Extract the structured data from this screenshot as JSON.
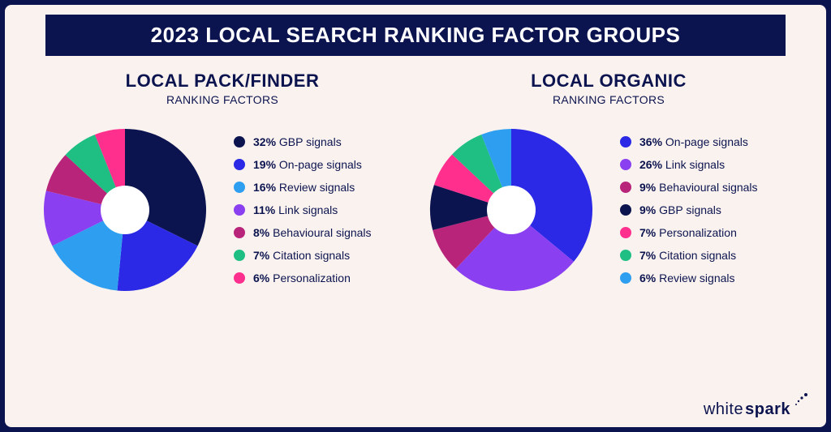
{
  "page": {
    "outer_bg": "#0c1450",
    "inner_bg": "#faf2ee",
    "title": "2023 LOCAL SEARCH RANKING FACTOR GROUPS",
    "title_color": "#ffffff",
    "title_bg": "#0c1450",
    "title_fontsize": 26,
    "text_color": "#0c1450",
    "brand_prefix": "white",
    "brand_bold": "spark"
  },
  "charts": [
    {
      "type": "donut",
      "title": "LOCAL PACK/FINDER",
      "subtitle": "RANKING FACTORS",
      "title_fontsize": 22,
      "subtitle_fontsize": 14,
      "outer_radius": 100,
      "inner_radius": 30,
      "inner_hole_color": "#ffffff",
      "start_angle_deg": 0,
      "clockwise": true,
      "slices": [
        {
          "value": 32,
          "label": "GBP signals",
          "color": "#0c1450"
        },
        {
          "value": 19,
          "label": "On-page signals",
          "color": "#2b29e6"
        },
        {
          "value": 16,
          "label": "Review signals",
          "color": "#2e9ff0"
        },
        {
          "value": 11,
          "label": "Link signals",
          "color": "#8a3ff0"
        },
        {
          "value": 8,
          "label": "Behavioural signals",
          "color": "#b8247a"
        },
        {
          "value": 7,
          "label": "Citation signals",
          "color": "#1fbf83"
        },
        {
          "value": 6,
          "label": "Personalization",
          "color": "#ff2f8e"
        }
      ]
    },
    {
      "type": "donut",
      "title": "LOCAL ORGANIC",
      "subtitle": "RANKING FACTORS",
      "title_fontsize": 22,
      "subtitle_fontsize": 14,
      "outer_radius": 100,
      "inner_radius": 30,
      "inner_hole_color": "#ffffff",
      "start_angle_deg": 0,
      "clockwise": true,
      "slices": [
        {
          "value": 36,
          "label": "On-page signals",
          "color": "#2b29e6"
        },
        {
          "value": 26,
          "label": "Link signals",
          "color": "#8a3ff0"
        },
        {
          "value": 9,
          "label": "Behavioural signals",
          "color": "#b8247a"
        },
        {
          "value": 9,
          "label": "GBP signals",
          "color": "#0c1450"
        },
        {
          "value": 7,
          "label": "Personalization",
          "color": "#ff2f8e"
        },
        {
          "value": 7,
          "label": "Citation signals",
          "color": "#1fbf83"
        },
        {
          "value": 6,
          "label": "Review signals",
          "color": "#2e9ff0"
        }
      ]
    }
  ]
}
